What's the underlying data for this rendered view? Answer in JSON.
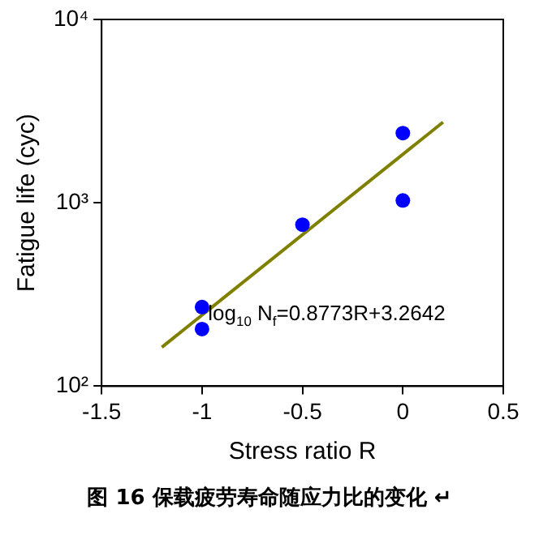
{
  "chart_data": {
    "type": "scatter",
    "xlabel": "Stress ratio R",
    "ylabel": "Fatigue life (cyc)",
    "x": [
      -1,
      -1,
      -0.5,
      0,
      0
    ],
    "series": [
      {
        "type": "scatter",
        "color": "#0000ff",
        "values": [
          270,
          205,
          760,
          1030,
          2400
        ],
        "marker": "circle"
      },
      {
        "type": "line",
        "color": "#808000",
        "x": [
          -1.2,
          0.2
        ],
        "values": [
          163,
          2752
        ],
        "marker": "none"
      }
    ],
    "xlim": [
      -1.5,
      0.5
    ],
    "xticks": [
      -1.5,
      -1,
      -0.5,
      0,
      0.5
    ],
    "ylim": [
      100,
      10000
    ],
    "yticks": [
      {
        "value": 100,
        "label": "10²"
      },
      {
        "value": 1000,
        "label": "10³"
      },
      {
        "value": 10000,
        "label": "10⁴"
      }
    ],
    "log": "y",
    "grid": false,
    "legend": false,
    "annotations": [
      {
        "text": "log$_{10}$ N$_{f}$=0.8773R+3.2642",
        "x": -0.97,
        "y": 230
      },
      "图 16  保载疲劳寿命随应力比的变化 ↵"
    ]
  }
}
